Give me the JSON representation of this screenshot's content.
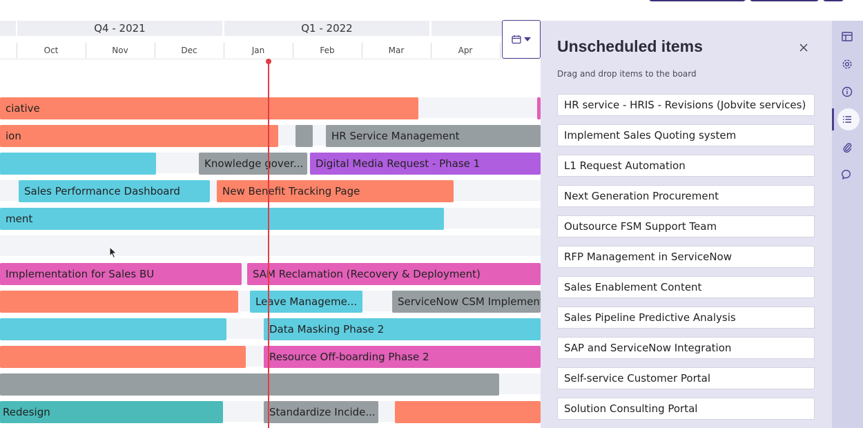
{
  "timeline": {
    "quarters": [
      "Q4 - 2021",
      "Q1 - 2022"
    ],
    "months": [
      "Oct",
      "Nov",
      "Dec",
      "Jan",
      "Feb",
      "Mar",
      "Apr"
    ]
  },
  "bars": {
    "r1a": "ciative",
    "r2a": "ion",
    "r2c": "HR Service Management",
    "r3b": "Knowledge gover...",
    "r3c": "Digital Media Request - Phase 1",
    "r4a": "Sales Performance Dashboard",
    "r4b": "New Benefit Tracking Page",
    "r5a": "ment",
    "r7a": "Implementation for Sales BU",
    "r7b": "SAM Reclamation (Recovery & Deployment)",
    "r8b": "Leave Manageme...",
    "r8c": "ServiceNow CSM Implementa",
    "r9b": "Data Masking Phase 2",
    "r10b": "Resource Off-boarding Phase 2",
    "r12a": "Redesign",
    "r12b": "Standardize Incide..."
  },
  "panel": {
    "title": "Unscheduled items",
    "subtitle": "Drag and drop items to the board",
    "items": [
      "HR service - HRIS - Revisions (Jobvite services)",
      "Implement Sales Quoting system",
      "L1 Request Automation",
      "Next Generation Procurement",
      "Outsource FSM Support Team",
      "RFP Management in ServiceNow",
      "Sales Enablement Content",
      "Sales Pipeline Predictive Analysis",
      "SAP and ServiceNow Integration",
      "Self-service Customer Portal",
      "Solution Consulting Portal"
    ]
  },
  "sidebar": {
    "icons": [
      "board-icon",
      "gear-icon",
      "info-icon",
      "list-icon",
      "paperclip-icon",
      "comment-icon"
    ],
    "active": "list-icon"
  },
  "colors": {
    "orange": "#fd8469",
    "gray": "#979ea2",
    "cyan": "#5ecde0",
    "purple": "#b05ee0",
    "pink": "#e35fb8",
    "teal": "#4bbab9",
    "today": "#e23c44",
    "accent": "#4a3f8f"
  }
}
